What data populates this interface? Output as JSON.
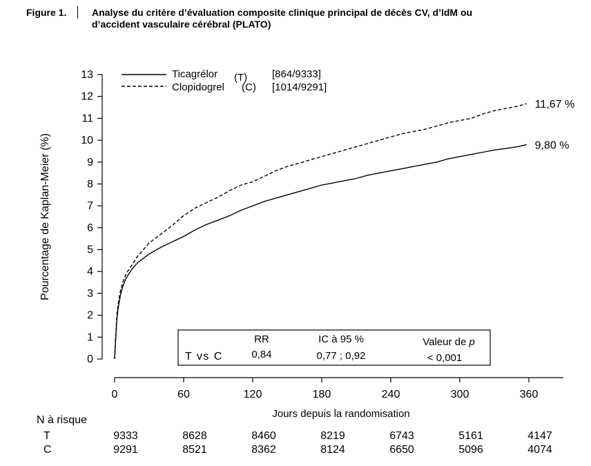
{
  "figure": {
    "label": "Figure 1.",
    "title_line1": "Analyse du critère d’évaluation composite clinique principal de décès CV, d’IdM ou",
    "title_line2": "d’accident vasculaire cérébral (PLATO)"
  },
  "chart_data": {
    "type": "line",
    "title": "Analyse du critère d’évaluation composite clinique principal de décès CV, d’IdM ou d’accident vasculaire cérébral (PLATO)",
    "xlabel": "Jours depuis la randomisation",
    "ylabel": "Pourcentage de Kaplan-Meier (%)",
    "xlim": [
      0,
      375
    ],
    "ylim": [
      0,
      13
    ],
    "xticks": [
      0,
      60,
      120,
      180,
      240,
      300,
      360
    ],
    "yticks": [
      0,
      1,
      2,
      3,
      4,
      5,
      6,
      7,
      8,
      9,
      10,
      11,
      12,
      13
    ],
    "grid": false,
    "legend_position": "top-left",
    "series": [
      {
        "name": "Ticagrélor (T)",
        "label_prefix": "Ticagrélor",
        "label_code": "(T)",
        "counts": "[864/9333]",
        "end_label": "9,80 %",
        "style": "solid",
        "x": [
          0,
          1,
          2,
          3,
          5,
          7,
          10,
          15,
          20,
          25,
          30,
          40,
          50,
          60,
          70,
          80,
          90,
          100,
          110,
          120,
          130,
          140,
          150,
          160,
          170,
          180,
          190,
          200,
          210,
          220,
          230,
          240,
          250,
          260,
          270,
          280,
          290,
          300,
          310,
          320,
          330,
          340,
          350,
          358
        ],
        "y": [
          0,
          1.0,
          1.8,
          2.3,
          2.9,
          3.3,
          3.7,
          4.1,
          4.4,
          4.6,
          4.8,
          5.1,
          5.35,
          5.6,
          5.9,
          6.15,
          6.35,
          6.55,
          6.8,
          7.0,
          7.2,
          7.35,
          7.5,
          7.65,
          7.8,
          7.95,
          8.05,
          8.15,
          8.25,
          8.4,
          8.5,
          8.6,
          8.7,
          8.8,
          8.9,
          9.0,
          9.15,
          9.25,
          9.35,
          9.45,
          9.55,
          9.62,
          9.7,
          9.8
        ]
      },
      {
        "name": "Clopidogrel (C)",
        "label_prefix": "Clopidogrel",
        "label_code": "(C)",
        "counts": "[1014/9291]",
        "end_label": "11,67 %",
        "style": "dashed",
        "x": [
          0,
          1,
          2,
          3,
          5,
          7,
          10,
          15,
          20,
          25,
          30,
          40,
          50,
          60,
          70,
          80,
          90,
          100,
          110,
          120,
          130,
          140,
          150,
          160,
          170,
          180,
          190,
          200,
          210,
          220,
          230,
          240,
          250,
          260,
          270,
          280,
          290,
          300,
          310,
          320,
          330,
          340,
          350,
          358
        ],
        "y": [
          0,
          1.1,
          2.0,
          2.5,
          3.1,
          3.5,
          3.9,
          4.3,
          4.7,
          5.0,
          5.3,
          5.7,
          6.1,
          6.55,
          6.9,
          7.15,
          7.4,
          7.7,
          7.95,
          8.1,
          8.35,
          8.6,
          8.8,
          8.95,
          9.1,
          9.25,
          9.4,
          9.55,
          9.7,
          9.85,
          10.0,
          10.15,
          10.3,
          10.4,
          10.5,
          10.65,
          10.8,
          10.9,
          11.0,
          11.2,
          11.35,
          11.45,
          11.55,
          11.67
        ]
      }
    ],
    "stats_box": {
      "comparison": "T vs C",
      "rr_header": "RR",
      "rr_value": "0,84",
      "ci_header": "IC à 95 %",
      "ci_value": "0,77 ; 0,92",
      "p_header_prefix": "Valeur de",
      "p_header_symbol": "p",
      "p_value": "< 0,001"
    },
    "risk_table": {
      "title": "N à risque",
      "rows": [
        {
          "label": "T",
          "values": [
            "9333",
            "8628",
            "8460",
            "8219",
            "6743",
            "5161",
            "4147"
          ]
        },
        {
          "label": "C",
          "values": [
            "9291",
            "8521",
            "8362",
            "8124",
            "6650",
            "5096",
            "4074"
          ]
        }
      ]
    }
  }
}
